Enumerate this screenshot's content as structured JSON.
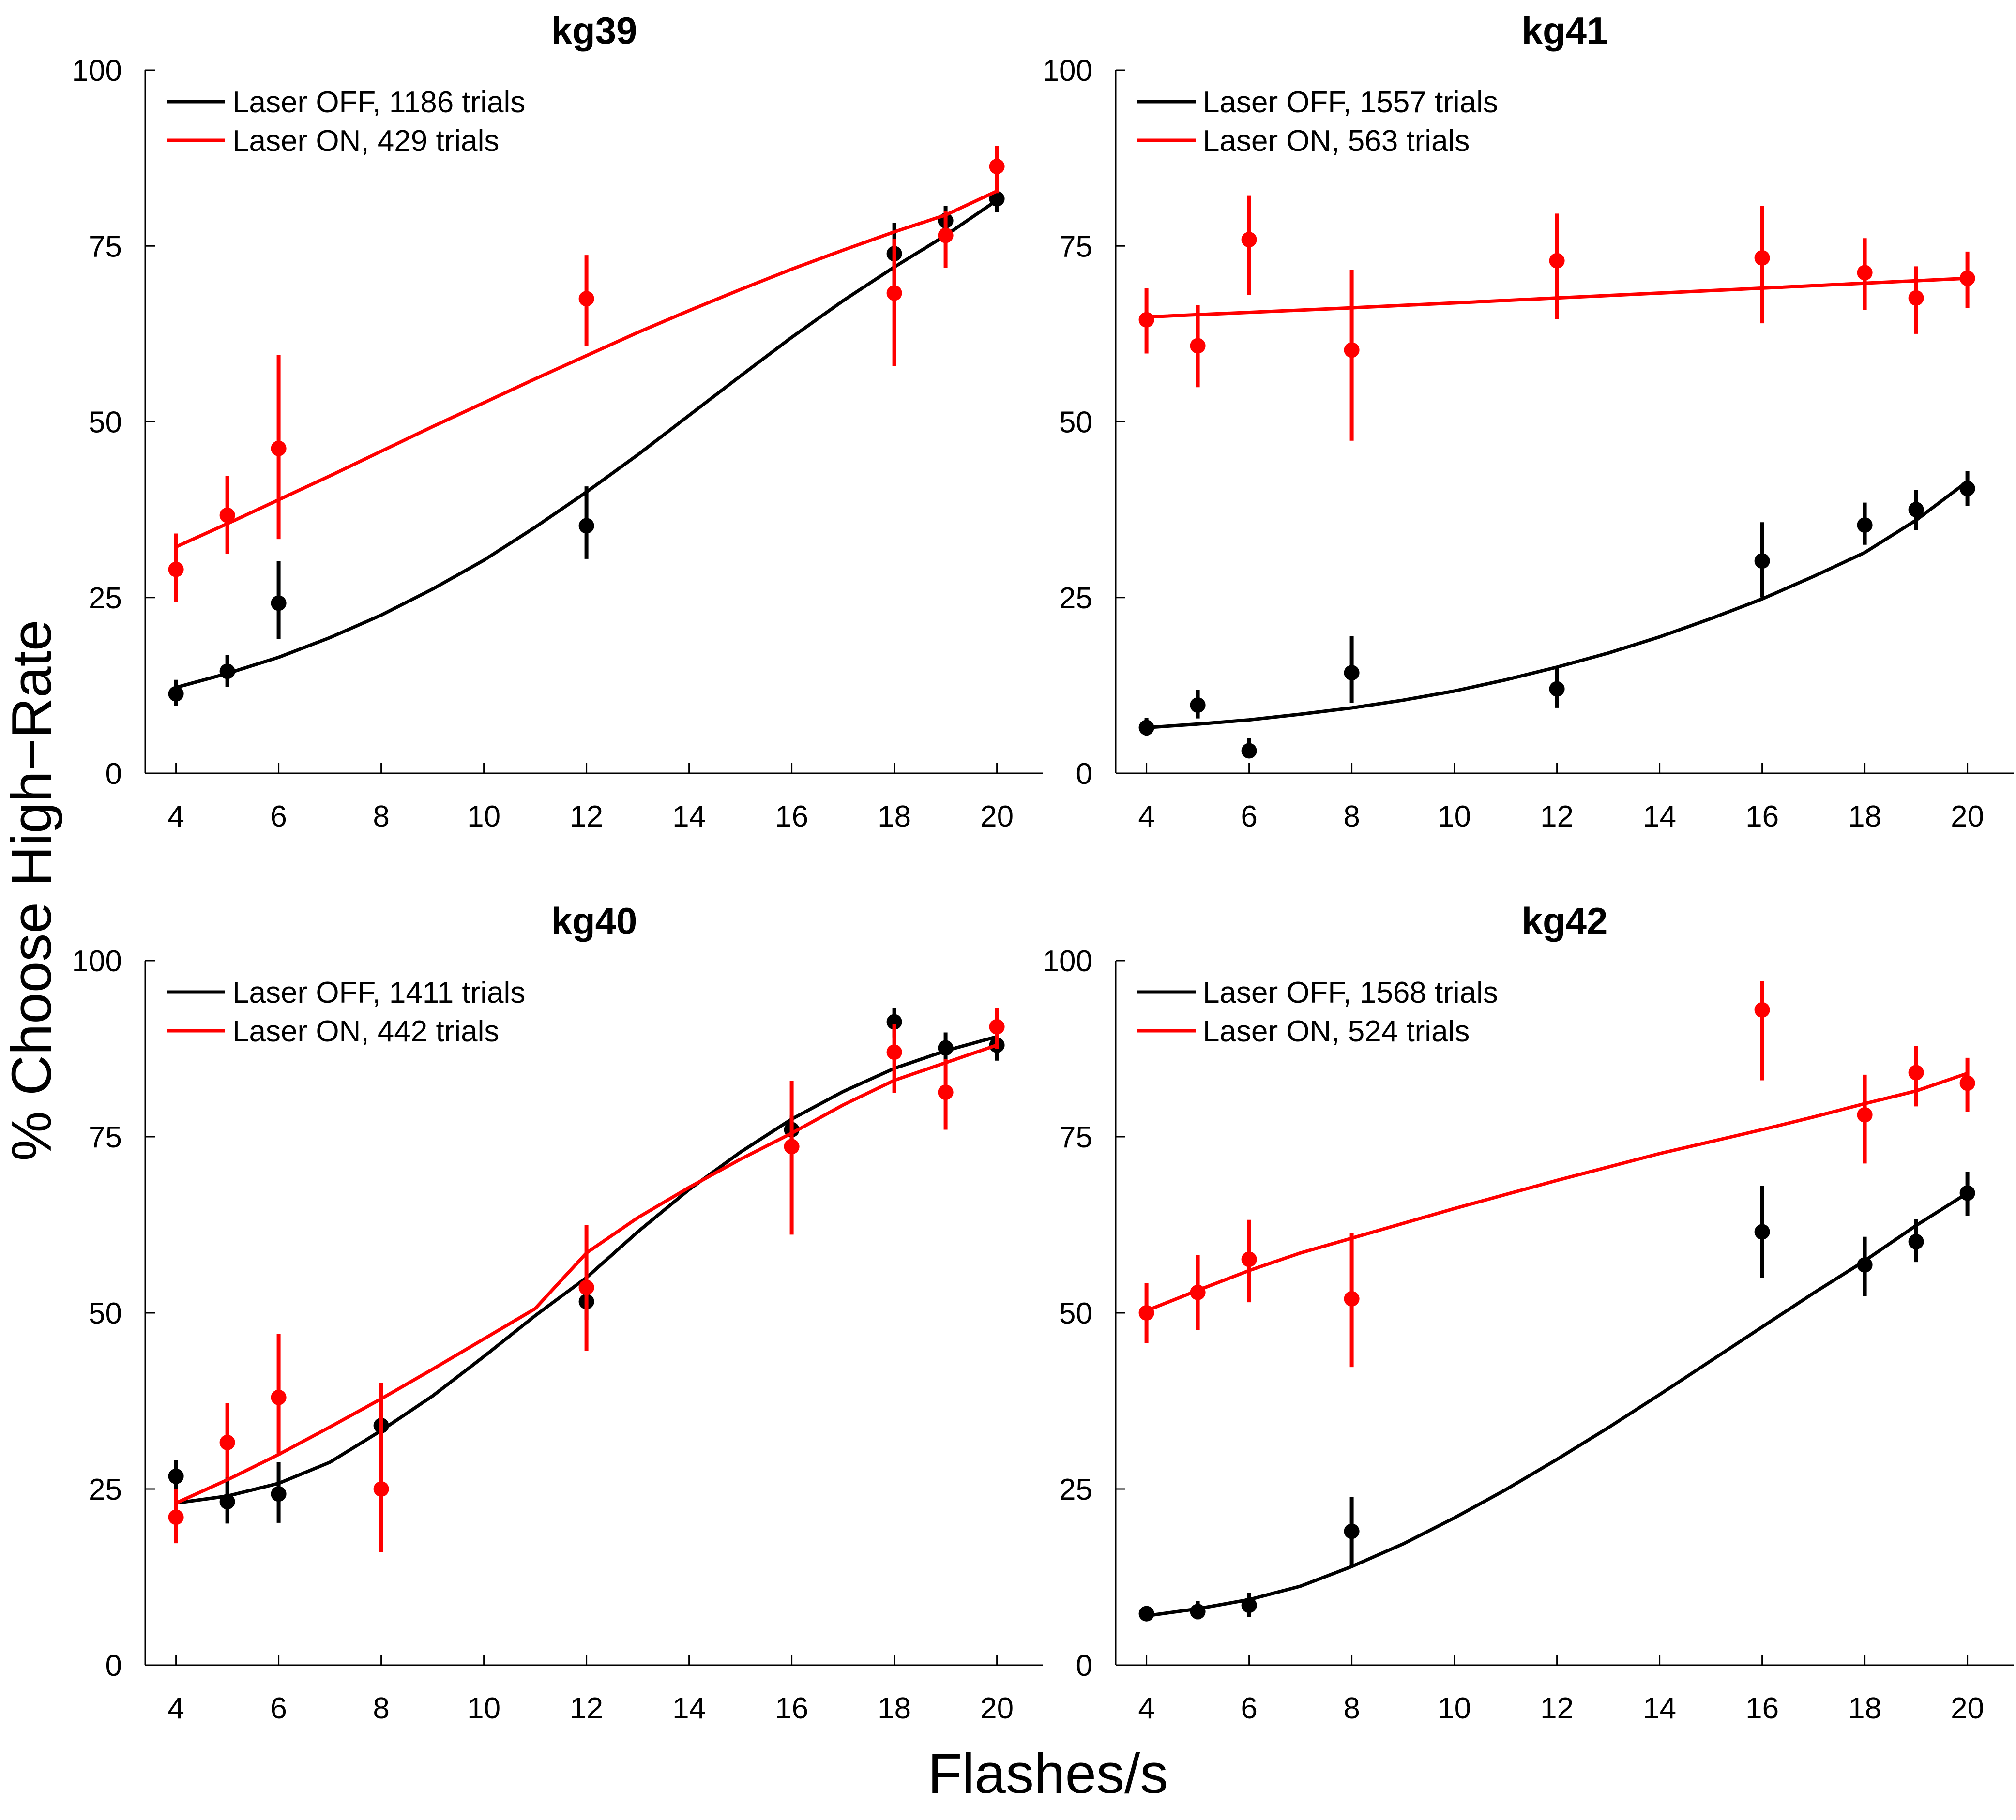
{
  "figure": {
    "xlabel": "Flashes/s",
    "ylabel": "% Choose High−Rate"
  },
  "colors": {
    "laser_off": "#000000",
    "laser_on": "#ff0000"
  },
  "chart_data": [
    {
      "type": "scatter",
      "title": "kg39",
      "xlim": [
        3,
        21
      ],
      "ylim": [
        0,
        100
      ],
      "xticks": [
        4,
        6,
        8,
        10,
        12,
        14,
        16,
        18,
        20
      ],
      "yticks": [
        0,
        25,
        50,
        75,
        100
      ],
      "legend_position": "top-left",
      "series": [
        {
          "name": "Laser OFF, 1186 trials",
          "color": "#000000",
          "x": [
            4,
            5,
            6,
            12,
            18,
            19,
            20
          ],
          "y": [
            11.3,
            14.5,
            24.2,
            35.2,
            73.9,
            78.6,
            81.7
          ],
          "err_low": [
            9.6,
            12.3,
            19.1,
            30.5,
            68.9,
            76.5,
            79.8
          ],
          "err_high": [
            13.3,
            16.8,
            30.2,
            40.8,
            78.3,
            80.7,
            83.5
          ],
          "fit": {
            "x": [
              4,
              5,
              6,
              7,
              8,
              9,
              10,
              11,
              12,
              13,
              14,
              15,
              16,
              17,
              18,
              19,
              20
            ],
            "y": [
              12.2,
              14.2,
              16.5,
              19.3,
              22.5,
              26.2,
              30.3,
              35.0,
              40.0,
              45.3,
              50.9,
              56.5,
              62.0,
              67.2,
              72.0,
              76.5,
              81.5
            ]
          }
        },
        {
          "name": "Laser ON, 429 trials",
          "color": "#ff0000",
          "x": [
            4,
            5,
            6,
            12,
            18,
            19,
            20
          ],
          "y": [
            29.0,
            36.7,
            46.2,
            67.5,
            68.3,
            76.5,
            86.3
          ],
          "err_low": [
            24.3,
            31.2,
            33.3,
            60.8,
            57.9,
            71.9,
            82.5
          ],
          "err_high": [
            34.1,
            42.3,
            59.5,
            73.7,
            76.0,
            79.9,
            89.2
          ],
          "fit": {
            "x": [
              4,
              5,
              6,
              7,
              8,
              9,
              10,
              11,
              12,
              13,
              14,
              15,
              16,
              17,
              18,
              19,
              20
            ],
            "y": [
              32.2,
              35.5,
              38.9,
              42.3,
              45.8,
              49.3,
              52.7,
              56.1,
              59.4,
              62.7,
              65.8,
              68.8,
              71.7,
              74.4,
              77.0,
              79.4,
              82.8
            ]
          }
        }
      ]
    },
    {
      "type": "scatter",
      "title": "kg41",
      "xlim": [
        3,
        21
      ],
      "ylim": [
        0,
        100
      ],
      "xticks": [
        4,
        6,
        8,
        10,
        12,
        14,
        16,
        18,
        20
      ],
      "yticks": [
        0,
        25,
        50,
        75,
        100
      ],
      "legend_position": "top-left",
      "series": [
        {
          "name": "Laser OFF, 1557 trials",
          "color": "#000000",
          "x": [
            4,
            5,
            6,
            8,
            12,
            16,
            18,
            19,
            20
          ],
          "y": [
            6.5,
            9.7,
            3.2,
            14.3,
            12.0,
            30.2,
            35.3,
            37.5,
            40.5
          ],
          "err_low": [
            5.3,
            7.8,
            2.3,
            10.0,
            9.3,
            25.0,
            32.5,
            34.6,
            38.0
          ],
          "err_high": [
            7.9,
            11.9,
            5.0,
            19.5,
            15.2,
            35.7,
            38.5,
            40.3,
            43.0
          ],
          "fit": {
            "x": [
              4,
              5,
              6,
              7,
              8,
              9,
              10,
              11,
              12,
              13,
              14,
              15,
              16,
              17,
              18,
              19,
              20
            ],
            "y": [
              6.5,
              7.0,
              7.6,
              8.4,
              9.3,
              10.4,
              11.7,
              13.3,
              15.1,
              17.1,
              19.4,
              22.0,
              24.8,
              28.0,
              31.4,
              36.0,
              41.5
            ]
          }
        },
        {
          "name": "Laser ON, 563 trials",
          "color": "#ff0000",
          "x": [
            4,
            5,
            6,
            8,
            12,
            16,
            18,
            19,
            20
          ],
          "y": [
            64.5,
            60.8,
            75.9,
            60.2,
            72.9,
            73.3,
            71.2,
            67.6,
            70.4
          ],
          "err_low": [
            59.7,
            54.9,
            68.0,
            47.3,
            64.6,
            64.0,
            65.9,
            62.5,
            66.2
          ],
          "err_high": [
            69.0,
            66.6,
            82.2,
            71.6,
            79.6,
            80.7,
            76.1,
            72.1,
            74.2
          ],
          "fit": {
            "x": [
              4,
              8,
              12,
              16,
              20
            ],
            "y": [
              64.9,
              66.2,
              67.6,
              69.0,
              70.4
            ]
          }
        }
      ]
    },
    {
      "type": "scatter",
      "title": "kg40",
      "xlim": [
        3,
        21
      ],
      "ylim": [
        0,
        100
      ],
      "xticks": [
        4,
        6,
        8,
        10,
        12,
        14,
        16,
        18,
        20
      ],
      "yticks": [
        0,
        25,
        50,
        75,
        100
      ],
      "legend_position": "top-left",
      "series": [
        {
          "name": "Laser OFF, 1411 trials",
          "color": "#000000",
          "x": [
            4,
            5,
            6,
            8,
            12,
            16,
            18,
            19,
            20
          ],
          "y": [
            26.8,
            23.2,
            24.3,
            34.0,
            51.6,
            76.0,
            91.3,
            87.6,
            88.0
          ],
          "err_low": [
            24.4,
            20.1,
            20.2,
            28.4,
            49.0,
            73.5,
            89.1,
            85.4,
            85.8
          ],
          "err_high": [
            29.1,
            26.7,
            28.8,
            39.8,
            54.2,
            78.0,
            93.3,
            89.8,
            90.0
          ],
          "fit": {
            "x": [
              4,
              5,
              6,
              7,
              8,
              9,
              10,
              11,
              12,
              13,
              14,
              15,
              16,
              17,
              18,
              19,
              20
            ],
            "y": [
              23.0,
              24.0,
              25.8,
              28.8,
              33.3,
              38.2,
              43.8,
              49.6,
              55.0,
              61.5,
              67.5,
              72.8,
              77.5,
              81.4,
              84.7,
              87.2,
              89.2
            ]
          }
        },
        {
          "name": "Laser ON, 442 trials",
          "color": "#ff0000",
          "x": [
            4,
            5,
            6,
            8,
            12,
            16,
            18,
            19,
            20
          ],
          "y": [
            21.0,
            31.6,
            38.0,
            25.0,
            53.6,
            73.6,
            87.0,
            81.3,
            90.6
          ],
          "err_low": [
            17.3,
            26.6,
            29.7,
            16.0,
            44.6,
            61.1,
            81.2,
            76.0,
            87.5
          ],
          "err_high": [
            25.0,
            37.2,
            47.0,
            40.1,
            62.5,
            82.9,
            91.0,
            86.0,
            93.3
          ],
          "fit": {
            "x": [
              4,
              5,
              6,
              7,
              8,
              9,
              10,
              11,
              12,
              13,
              14,
              15,
              16,
              17,
              18,
              19,
              20
            ],
            "y": [
              23.0,
              26.3,
              29.9,
              33.8,
              37.8,
              42.0,
              46.3,
              50.6,
              58.5,
              63.5,
              67.8,
              71.8,
              75.5,
              79.5,
              83.0,
              85.5,
              88.0
            ]
          }
        }
      ]
    },
    {
      "type": "scatter",
      "title": "kg42",
      "xlim": [
        3,
        21
      ],
      "ylim": [
        0,
        100
      ],
      "xticks": [
        4,
        6,
        8,
        10,
        12,
        14,
        16,
        18,
        20
      ],
      "yticks": [
        0,
        25,
        50,
        75,
        100
      ],
      "legend_position": "top-left",
      "series": [
        {
          "name": "Laser OFF, 1568 trials",
          "color": "#000000",
          "x": [
            4,
            5,
            6,
            8,
            16,
            18,
            19,
            20
          ],
          "y": [
            7.3,
            7.6,
            8.5,
            19.0,
            61.5,
            56.8,
            60.1,
            67.0
          ],
          "err_low": [
            6.3,
            6.5,
            6.8,
            14.2,
            55.0,
            52.4,
            57.2,
            63.8
          ],
          "err_high": [
            8.4,
            9.1,
            10.3,
            23.9,
            68.0,
            60.8,
            63.3,
            70.0
          ],
          "fit": {
            "x": [
              4,
              5,
              6,
              7,
              8,
              9,
              10,
              11,
              12,
              13,
              14,
              15,
              16,
              17,
              18,
              19,
              20
            ],
            "y": [
              7.0,
              8.0,
              9.3,
              11.2,
              14.0,
              17.2,
              20.9,
              24.9,
              29.2,
              33.7,
              38.4,
              43.2,
              48.0,
              52.8,
              57.4,
              62.4,
              67.0
            ]
          }
        },
        {
          "name": "Laser ON, 524 trials",
          "color": "#ff0000",
          "x": [
            4,
            5,
            6,
            8,
            16,
            18,
            19,
            20
          ],
          "y": [
            50.0,
            52.9,
            57.6,
            52.0,
            93.0,
            78.1,
            84.1,
            82.6
          ],
          "err_low": [
            45.7,
            47.6,
            51.5,
            42.3,
            83.0,
            71.2,
            79.3,
            78.5
          ],
          "err_high": [
            54.2,
            58.2,
            63.2,
            61.3,
            97.1,
            83.8,
            87.9,
            86.2
          ],
          "fit": {
            "x": [
              4,
              5,
              6,
              7,
              8,
              9,
              10,
              11,
              12,
              13,
              14,
              15,
              16,
              17,
              18,
              19,
              20
            ],
            "y": [
              50.3,
              53.2,
              56.0,
              58.5,
              60.6,
              62.7,
              64.8,
              66.8,
              68.8,
              70.7,
              72.6,
              74.3,
              76.0,
              77.8,
              79.7,
              81.5,
              84.0
            ]
          }
        }
      ]
    }
  ]
}
